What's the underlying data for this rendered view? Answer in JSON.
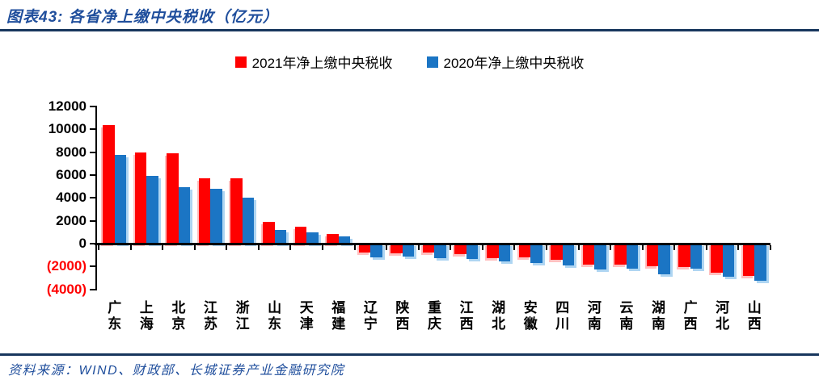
{
  "header": {
    "title": "图表43:  各省净上缴中央税收（亿元）"
  },
  "footer": {
    "source": "资料来源：WIND、财政部、长城证券产业金融研究院"
  },
  "colors": {
    "series_2021": "#FF0000",
    "series_2020": "#1B75C4",
    "title_text": "#1F4E9C",
    "divider_rule": "#17365D",
    "axis": "#000000",
    "negative_tick_label": "#FF0000"
  },
  "chart_data": {
    "type": "bar",
    "title": "各省净上缴中央税收（亿元）",
    "unit": "亿元",
    "categories": [
      "广东",
      "上海",
      "北京",
      "江苏",
      "浙江",
      "山东",
      "天津",
      "福建",
      "辽宁",
      "陕西",
      "重庆",
      "江西",
      "湖北",
      "安徽",
      "四川",
      "河南",
      "云南",
      "湖南",
      "广西",
      "河北",
      "山西"
    ],
    "series": [
      {
        "name": "2021年净上缴中央税收",
        "color": "#FF0000",
        "values": [
          10400,
          8000,
          7900,
          5750,
          5750,
          1880,
          1450,
          880,
          -800,
          -870,
          -780,
          -940,
          -1250,
          -1200,
          -1380,
          -1800,
          -1800,
          -2000,
          -2070,
          -2540,
          -2850
        ]
      },
      {
        "name": "2020年净上缴中央税收",
        "color": "#1B75C4",
        "values": [
          7750,
          5900,
          4950,
          4800,
          4000,
          1200,
          1020,
          620,
          -1200,
          -1130,
          -1300,
          -1370,
          -1520,
          -1700,
          -1900,
          -2250,
          -2200,
          -2700,
          -2200,
          -2900,
          -3250
        ]
      }
    ],
    "ylim": [
      -4000,
      12000
    ],
    "ytick_step": 2000,
    "y_tick_labels": [
      "12000",
      "10000",
      "8000",
      "6000",
      "4000",
      "2000",
      "0",
      "(2000)",
      "(4000)"
    ],
    "grid": false,
    "legend_position": "top"
  }
}
